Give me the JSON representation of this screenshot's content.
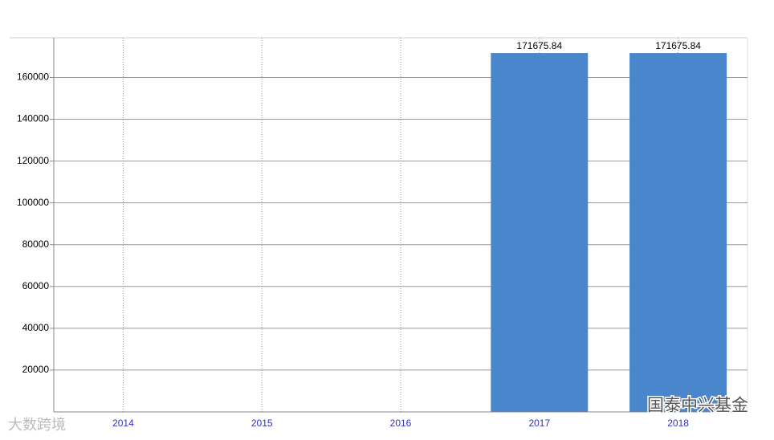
{
  "chart_data": {
    "type": "bar",
    "categories": [
      "2014",
      "2015",
      "2016",
      "2017",
      "2018"
    ],
    "values": [
      null,
      null,
      null,
      171675.84,
      171675.84
    ],
    "color": "#4a86cc",
    "ylim": [
      0,
      179000
    ],
    "yticks": [
      20000,
      40000,
      60000,
      80000,
      100000,
      120000,
      140000,
      160000
    ],
    "grid": true
  },
  "watermarks": [
    "大数跨境",
    "国泰中兴基金"
  ]
}
